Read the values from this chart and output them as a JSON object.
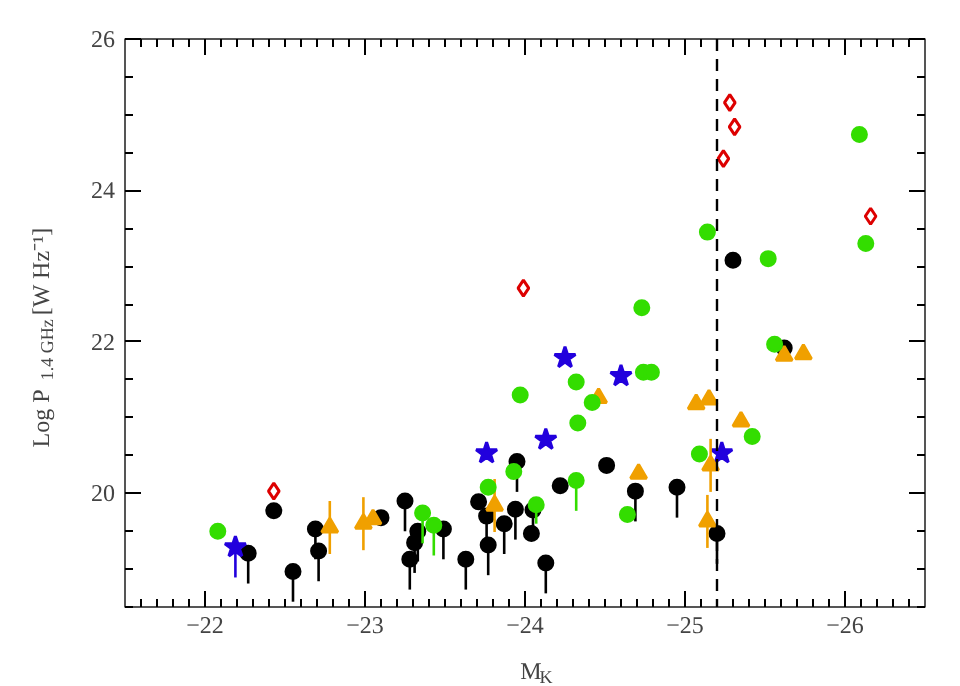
{
  "chart_data": {
    "type": "scatter",
    "xlabel": "M$_{K}$",
    "ylabel": "Log P$_{1.4 GHz}$ [W Hz⁻¹]",
    "xlim": [
      -21.5,
      -26.5
    ],
    "xticks": [
      {
        "value": -22,
        "label": "−22"
      },
      {
        "value": -23,
        "label": "−23"
      },
      {
        "value": -24,
        "label": "−24"
      },
      {
        "value": -25,
        "label": "−25"
      },
      {
        "value": -26,
        "label": "−26"
      }
    ],
    "ylim": [
      18.5,
      26
    ],
    "yticks": [
      20,
      22,
      24,
      26
    ],
    "grid": false,
    "ref_lines": [
      {
        "axis": "x",
        "value": -25.2,
        "color": "#000000",
        "line_style": "dashed"
      }
    ],
    "series": [
      {
        "color": "#33dd00",
        "marker": "circle",
        "x": [
          -22.08,
          -23.36,
          -23.43,
          -23.77,
          -23.97,
          -23.93,
          -24.07,
          -25.14,
          -25.52,
          -26.13,
          -24.73,
          -24.32,
          -24.74,
          -24.79,
          -24.42,
          -24.33,
          -25.56,
          -25.42,
          -25.09,
          -24.32,
          -24.64,
          -26.09
        ],
        "values": [
          19.5,
          19.74,
          19.58,
          20.08,
          21.3,
          20.29,
          19.85,
          23.45,
          23.1,
          23.3,
          22.45,
          21.47,
          21.6,
          21.6,
          21.2,
          20.93,
          21.97,
          20.75,
          20.52,
          20.17,
          19.72,
          24.74
        ],
        "errors": [
          null,
          [
            19.34,
            19.74
          ],
          [
            19.18,
            19.58
          ],
          null,
          null,
          null,
          [
            19.6,
            19.85
          ],
          null,
          null,
          null,
          null,
          null,
          null,
          null,
          null,
          null,
          null,
          null,
          null,
          [
            19.77,
            20.17
          ],
          null,
          null
        ]
      },
      {
        "color": "#000000",
        "marker": "circle",
        "x": [
          -22.27,
          -22.43,
          -22.55,
          -22.69,
          -22.71,
          -23.1,
          -23.25,
          -23.28,
          -23.31,
          -23.33,
          -23.49,
          -23.63,
          -23.71,
          -23.76,
          -23.77,
          -23.87,
          -23.94,
          -23.95,
          -24.04,
          -24.13,
          -24.05,
          -24.22,
          -24.51,
          -24.69,
          -24.95,
          -25.2,
          -25.3,
          -25.62
        ],
        "values": [
          19.21,
          19.77,
          18.97,
          19.53,
          19.24,
          19.68,
          19.9,
          19.13,
          19.35,
          19.5,
          19.53,
          19.13,
          19.89,
          19.7,
          19.32,
          19.6,
          19.79,
          20.42,
          19.47,
          19.08,
          19.78,
          20.1,
          20.37,
          20.03,
          20.08,
          19.47,
          23.08,
          21.92
        ],
        "errors": [
          [
            18.81,
            19.21
          ],
          null,
          [
            18.57,
            18.97
          ],
          [
            19.13,
            19.53
          ],
          [
            18.84,
            19.24
          ],
          null,
          [
            19.5,
            19.9
          ],
          [
            18.73,
            19.13
          ],
          [
            18.95,
            19.35
          ],
          [
            19.1,
            19.5
          ],
          [
            19.13,
            19.53
          ],
          [
            18.73,
            19.13
          ],
          null,
          [
            19.3,
            19.7
          ],
          [
            18.92,
            19.32
          ],
          [
            19.2,
            19.6
          ],
          [
            19.39,
            19.79
          ],
          [
            20.02,
            20.42
          ],
          null,
          [
            18.68,
            19.08
          ],
          [
            19.38,
            19.78
          ],
          null,
          null,
          [
            19.63,
            20.03
          ],
          [
            19.68,
            20.08
          ],
          [
            19.07,
            19.47
          ],
          null,
          null
        ]
      },
      {
        "color": "#2200dd",
        "marker": "star",
        "x": [
          -22.19,
          -23.76,
          -24.25,
          -24.6,
          -24.13,
          -25.23
        ],
        "values": [
          19.29,
          20.53,
          21.79,
          21.55,
          20.71,
          20.53
        ],
        "errors": [
          [
            18.89,
            19.29
          ],
          null,
          null,
          null,
          null,
          null
        ]
      },
      {
        "color": "#dd0000",
        "marker": "diamond",
        "x": [
          -22.43,
          -23.99,
          -25.28,
          -25.31,
          -25.24,
          -26.16
        ],
        "values": [
          20.03,
          22.71,
          25.16,
          24.84,
          24.42,
          23.66
        ]
      },
      {
        "color": "#f0a000",
        "marker": "triangle",
        "x": [
          -22.78,
          -22.99,
          -23.05,
          -23.81,
          -24.46,
          -25.07,
          -25.15,
          -25.35,
          -25.62,
          -25.74,
          -24.71,
          -25.16,
          -25.14
        ],
        "values": [
          19.55,
          19.6,
          19.66,
          19.84,
          21.26,
          21.18,
          21.24,
          20.95,
          21.82,
          21.84,
          20.26,
          20.37,
          19.63
        ],
        "errors": [
          0.35,
          0.35,
          null,
          0.35,
          null,
          null,
          null,
          null,
          null,
          null,
          null,
          0.35,
          0.35
        ]
      }
    ]
  }
}
